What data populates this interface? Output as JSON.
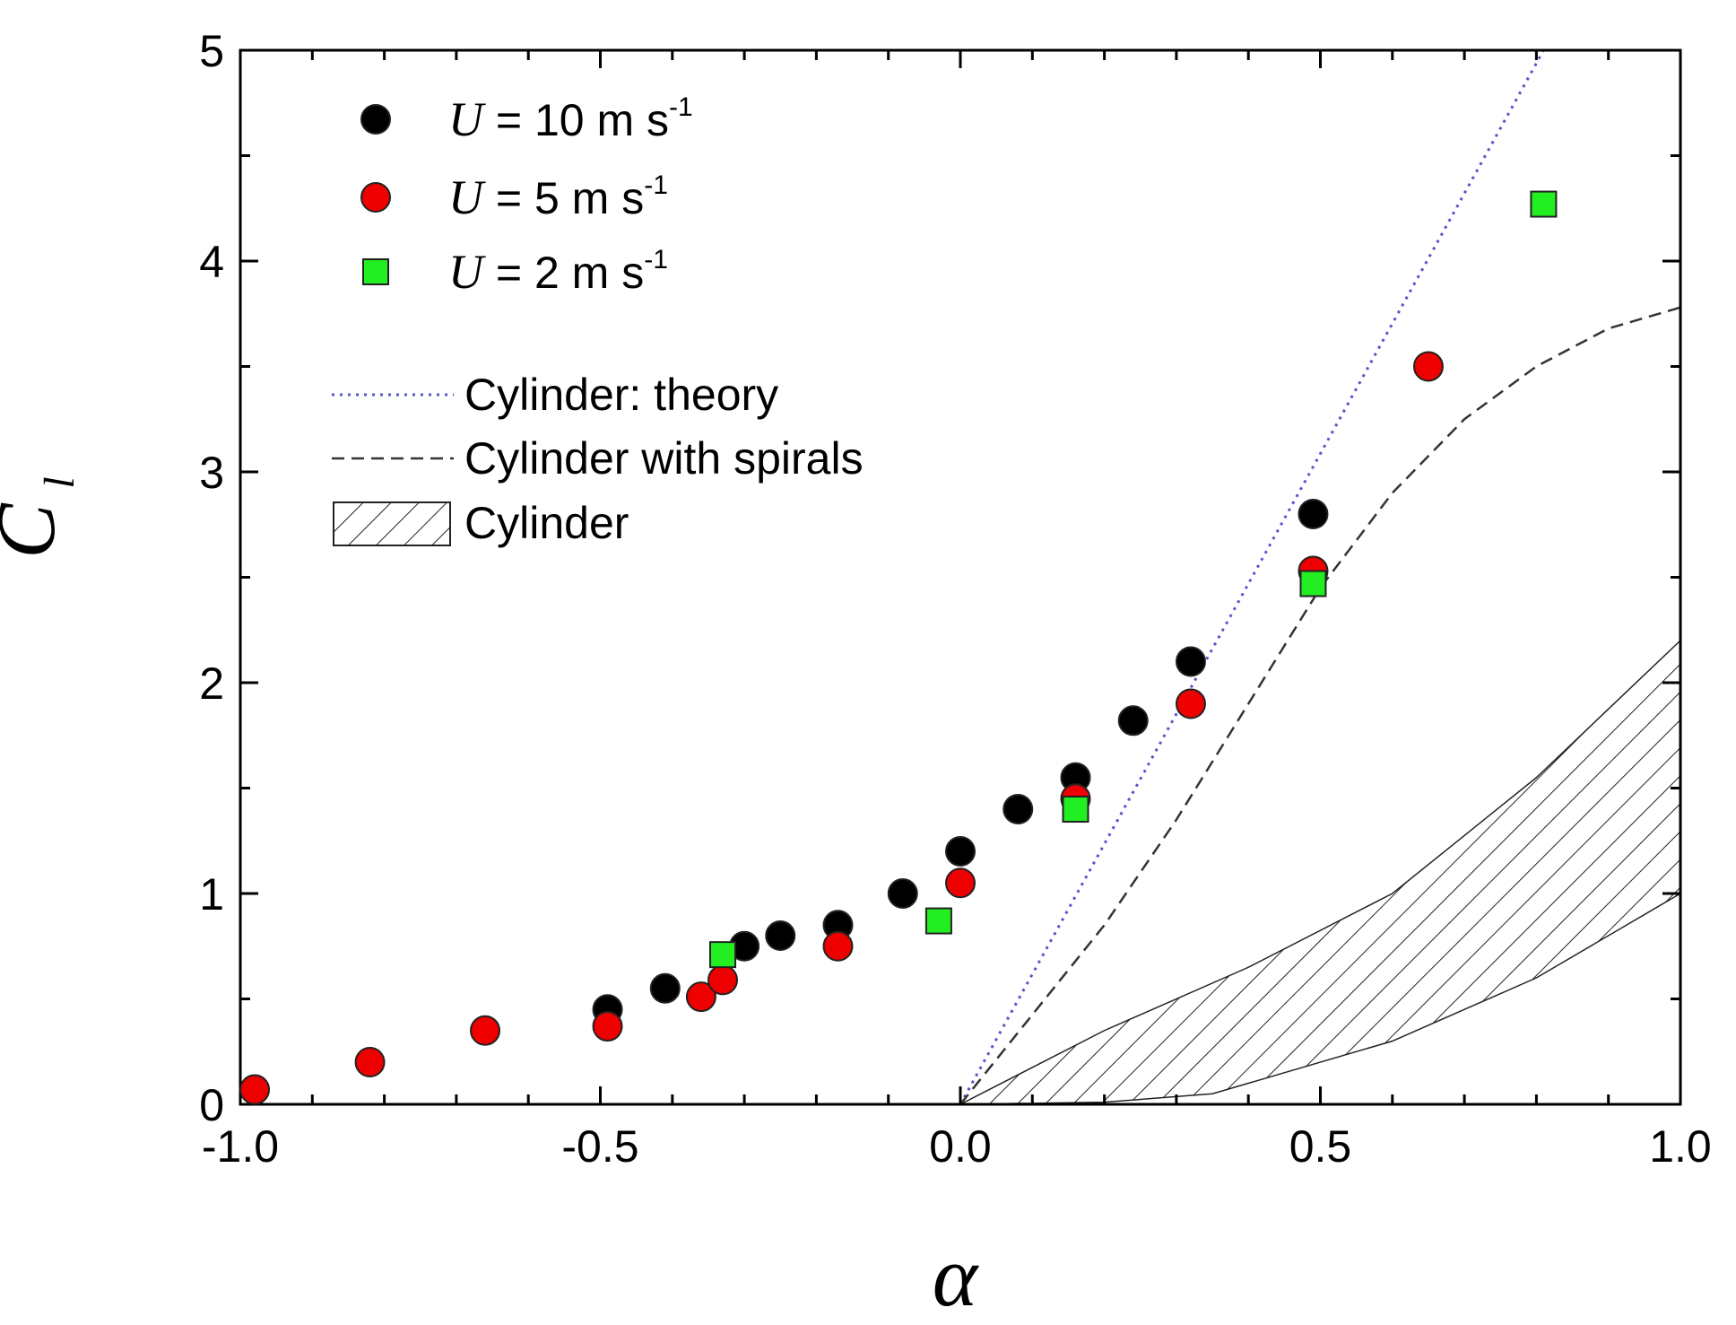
{
  "chart_data": {
    "type": "scatter",
    "title": "",
    "xlabel": "α",
    "ylabel_main": "C",
    "ylabel_sub": "l",
    "xlim": [
      -1.0,
      1.0
    ],
    "ylim": [
      0,
      5
    ],
    "x_ticks": [
      -1.0,
      -0.5,
      0.0,
      0.5,
      1.0
    ],
    "x_tick_labels": [
      "-1.0",
      "-0.5",
      "0.0",
      "0.5",
      "1.0"
    ],
    "y_ticks": [
      0,
      1,
      2,
      3,
      4,
      5
    ],
    "y_tick_labels": [
      "0",
      "1",
      "2",
      "3",
      "4",
      "5"
    ],
    "grid": false,
    "legend_position": "top-left",
    "series": [
      {
        "name": "U = 10 m s-1",
        "legend_sym": "U",
        "legend_eq": " = 10 m s",
        "legend_exp": "-1",
        "marker": "circle",
        "color": "#000000",
        "x": [
          -0.49,
          -0.41,
          -0.3,
          -0.25,
          -0.17,
          -0.08,
          0.0,
          0.08,
          0.16,
          0.24,
          0.32,
          0.49
        ],
        "y": [
          0.45,
          0.55,
          0.75,
          0.8,
          0.85,
          1.0,
          1.2,
          1.4,
          1.55,
          1.82,
          2.1,
          2.8
        ]
      },
      {
        "name": "U = 5 m s-1",
        "legend_sym": "U",
        "legend_eq": " = 5 m s",
        "legend_exp": "-1",
        "marker": "circle",
        "color": "#ee0000",
        "x": [
          -0.98,
          -0.82,
          -0.66,
          -0.49,
          -0.36,
          -0.33,
          -0.17,
          0.0,
          0.16,
          0.32,
          0.49,
          0.65
        ],
        "y": [
          0.07,
          0.2,
          0.35,
          0.37,
          0.51,
          0.59,
          0.75,
          1.05,
          1.45,
          1.9,
          2.53,
          3.5
        ]
      },
      {
        "name": "U = 2 m s-1",
        "legend_sym": "U",
        "legend_eq": " = 2 m s",
        "legend_exp": "-1",
        "marker": "square",
        "color": "#22ee22",
        "x": [
          -0.33,
          -0.03,
          0.16,
          0.49,
          0.81
        ],
        "y": [
          0.71,
          0.87,
          1.4,
          2.47,
          4.27
        ]
      }
    ],
    "lines": [
      {
        "name": "Cylinder: theory",
        "style": "dotted",
        "color": "#5555cc",
        "x": [
          0.0,
          0.81
        ],
        "y": [
          0.0,
          5.0
        ]
      },
      {
        "name": "Cylinder with spirals",
        "style": "dashed",
        "color": "#333333",
        "x": [
          0.0,
          0.2,
          0.3,
          0.4,
          0.5,
          0.6,
          0.7,
          0.8,
          0.9,
          1.0
        ],
        "y": [
          0.0,
          0.85,
          1.35,
          1.9,
          2.45,
          2.9,
          3.25,
          3.5,
          3.68,
          3.78
        ]
      }
    ],
    "band": {
      "name": "Cylinder",
      "pattern": "hatched",
      "upper": {
        "x": [
          0.0,
          0.2,
          0.4,
          0.6,
          0.8,
          1.0
        ],
        "y": [
          0.0,
          0.35,
          0.65,
          1.0,
          1.55,
          2.2
        ]
      },
      "lower": {
        "x": [
          0.0,
          0.2,
          0.35,
          0.6,
          0.8,
          1.0
        ],
        "y": [
          0.0,
          0.01,
          0.05,
          0.3,
          0.6,
          1.0
        ]
      }
    }
  }
}
